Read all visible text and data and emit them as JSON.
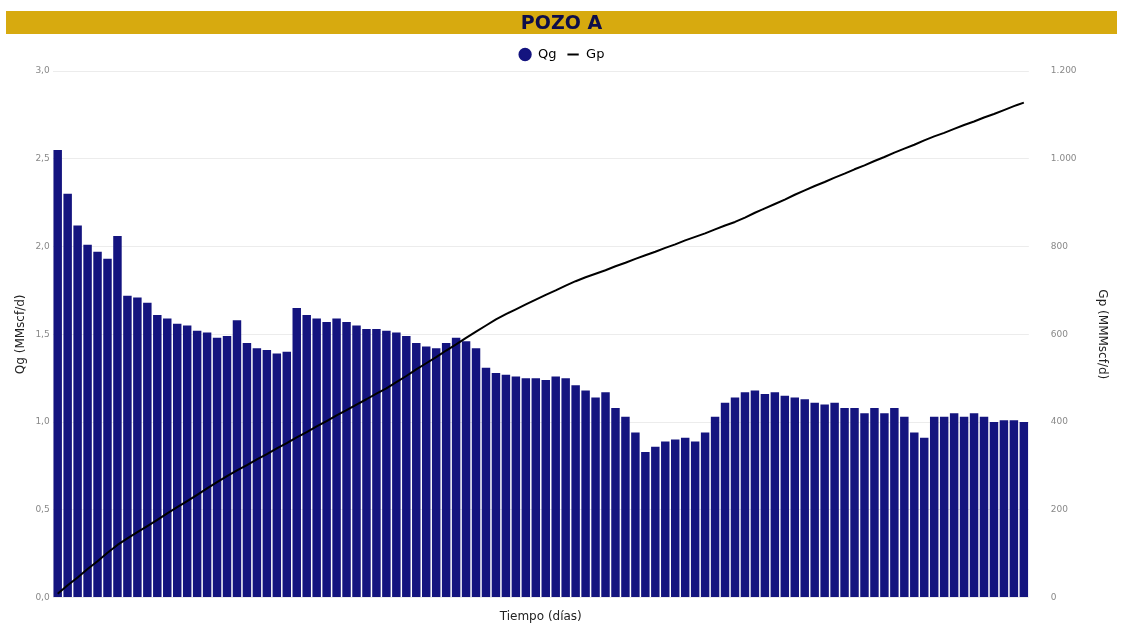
{
  "chart_data": {
    "type": "bar",
    "title": "POZO A",
    "xlabel": "Tiempo (días)",
    "ylabel": "Qg (MMscf/d)",
    "y2label": "Gp (MMMscf/d)",
    "categories": [
      null,
      null,
      null,
      null,
      null,
      null,
      null,
      null,
      null,
      null,
      null,
      null,
      null,
      null,
      null,
      null,
      null,
      null,
      null,
      null,
      null,
      null,
      null,
      null,
      null,
      null,
      null,
      null,
      null,
      null,
      null,
      null,
      null,
      null,
      null,
      null,
      null,
      null,
      null,
      null,
      null,
      null,
      null,
      null,
      null,
      null,
      null,
      null,
      null,
      null,
      null,
      null,
      null,
      null,
      null,
      null,
      null,
      null,
      null,
      null,
      null,
      null,
      null,
      null,
      null,
      null,
      null,
      null,
      null,
      null,
      null,
      null,
      null,
      null,
      null,
      null,
      null,
      null,
      null,
      null,
      null,
      null,
      null,
      null,
      null,
      null,
      null,
      null,
      null,
      null,
      null,
      null,
      null,
      null,
      null,
      null,
      null,
      null
    ],
    "series": [
      {
        "name": "Qg",
        "color": "#14147f",
        "values": [
          2.55,
          2.3,
          2.12,
          2.01,
          1.97,
          1.93,
          2.06,
          1.72,
          1.71,
          1.68,
          1.61,
          1.59,
          1.56,
          1.55,
          1.52,
          1.51,
          1.48,
          1.49,
          1.58,
          1.45,
          1.42,
          1.41,
          1.39,
          1.4,
          1.65,
          1.61,
          1.59,
          1.57,
          1.59,
          1.57,
          1.55,
          1.53,
          1.53,
          1.52,
          1.51,
          1.49,
          1.45,
          1.43,
          1.42,
          1.45,
          1.48,
          1.46,
          1.42,
          1.31,
          1.28,
          1.27,
          1.26,
          1.25,
          1.25,
          1.24,
          1.26,
          1.25,
          1.21,
          1.18,
          1.14,
          1.17,
          1.08,
          1.03,
          0.94,
          0.83,
          0.86,
          0.89,
          0.9,
          0.91,
          0.89,
          0.94,
          1.03,
          1.11,
          1.14,
          1.17,
          1.18,
          1.16,
          1.17,
          1.15,
          1.14,
          1.13,
          1.11,
          1.1,
          1.11,
          1.08,
          1.08,
          1.05,
          1.08,
          1.05,
          1.08,
          1.03,
          0.94,
          0.91,
          1.03,
          1.03,
          1.05,
          1.03,
          1.05,
          1.03,
          1.0,
          1.01,
          1.01,
          1.0
        ]
      },
      {
        "name": "Gp",
        "type": "line",
        "axis": "y2",
        "color": "#000000",
        "marker": "none",
        "values": [
          9,
          28,
          46,
          65,
          83,
          102,
          120,
          135,
          149,
          163,
          177,
          192,
          206,
          220,
          234,
          249,
          263,
          277,
          290,
          302,
          315,
          327,
          340,
          352,
          365,
          377,
          390,
          402,
          415,
          427,
          440,
          452,
          465,
          477,
          491,
          505,
          520,
          534,
          548,
          563,
          577,
          592,
          606,
          620,
          634,
          646,
          657,
          668,
          679,
          690,
          700,
          711,
          721,
          730,
          738,
          746,
          755,
          763,
          772,
          780,
          788,
          797,
          805,
          814,
          822,
          830,
          839,
          848,
          856,
          866,
          877,
          887,
          897,
          907,
          918,
          928,
          938,
          947,
          957,
          966,
          976,
          985,
          995,
          1004,
          1014,
          1023,
          1032,
          1042,
          1051,
          1059,
          1068,
          1077,
          1085,
          1094,
          1102,
          1111,
          1120,
          1128
        ]
      }
    ],
    "ylim": [
      0,
      3
    ],
    "yticks": [
      {
        "value": 0,
        "label": "0,0"
      },
      {
        "value": 0.5,
        "label": "0,5"
      },
      {
        "value": 1,
        "label": "1,0"
      },
      {
        "value": 1.5,
        "label": "1,5"
      },
      {
        "value": 2,
        "label": "2,0"
      },
      {
        "value": 2.5,
        "label": "2,5"
      },
      {
        "value": 3,
        "label": "3,0"
      }
    ],
    "y2lim": [
      0,
      1200
    ],
    "y2ticks": [
      0,
      200,
      400,
      600,
      800,
      {
        "value": 1000,
        "label": "1.000"
      },
      {
        "value": 1200,
        "label": "1.200"
      }
    ],
    "grid": "y",
    "legend": "top"
  }
}
